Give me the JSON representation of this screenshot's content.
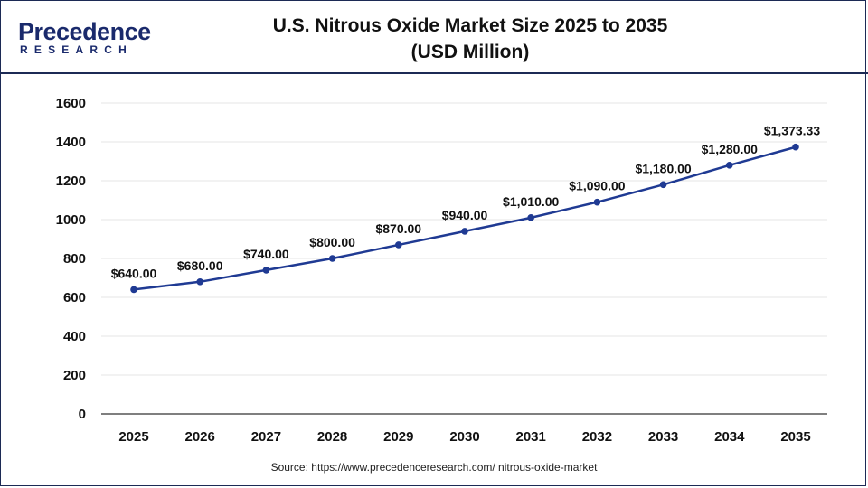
{
  "header": {
    "logo_word": "Precedence",
    "logo_sub": "RESEARCH",
    "title_line1": "U.S. Nitrous Oxide Market Size 2025 to 2035",
    "title_line2": "(USD Million)"
  },
  "source": "Source: https://www.precedenceresearch.com/ nitrous-oxide-market",
  "colors": {
    "line": "#1f3a93",
    "brand": "#1a2a6c",
    "logo_accent": "#e8313a"
  },
  "chart_data": {
    "type": "line",
    "title": "U.S. Nitrous Oxide Market Size 2025 to 2035 (USD Million)",
    "categories": [
      "2025",
      "2026",
      "2027",
      "2028",
      "2029",
      "2030",
      "2031",
      "2032",
      "2033",
      "2034",
      "2035"
    ],
    "values": [
      640,
      680,
      740,
      800,
      870,
      940,
      1010,
      1090,
      1180,
      1280,
      1373.33
    ],
    "data_labels": [
      "$640.00",
      "$680.00",
      "$740.00",
      "$800.00",
      "$870.00",
      "$940.00",
      "$1,010.00",
      "$1,090.00",
      "$1,180.00",
      "$1,280.00",
      "$1,373.33"
    ],
    "yticks": [
      "0",
      "200",
      "400",
      "600",
      "800",
      "1000",
      "1200",
      "1400",
      "1600"
    ],
    "ylim": [
      0,
      1600
    ],
    "grid": true,
    "legend": "none"
  }
}
